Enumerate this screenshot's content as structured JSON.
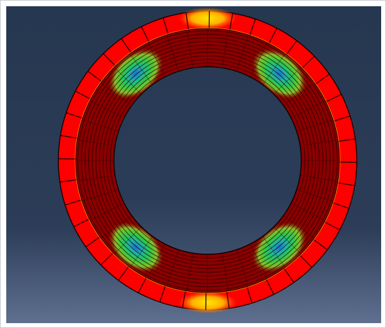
{
  "window": {
    "title": ""
  },
  "viewport": {
    "background_top": "#263750",
    "background_bottom": "#5f7090"
  },
  "model": {
    "description_hidden": "",
    "outer_ring_color": "#ff0000",
    "element_edge_color": "#1a0000",
    "inner_band_color": "#8b0000",
    "contour_colors": [
      "#1e6bd6",
      "#1fb3a6",
      "#2ec94a",
      "#b7e83a",
      "#ffe600",
      "#ffb000",
      "#ff6a00",
      "#ff0000"
    ],
    "outer_element_count": 40
  }
}
